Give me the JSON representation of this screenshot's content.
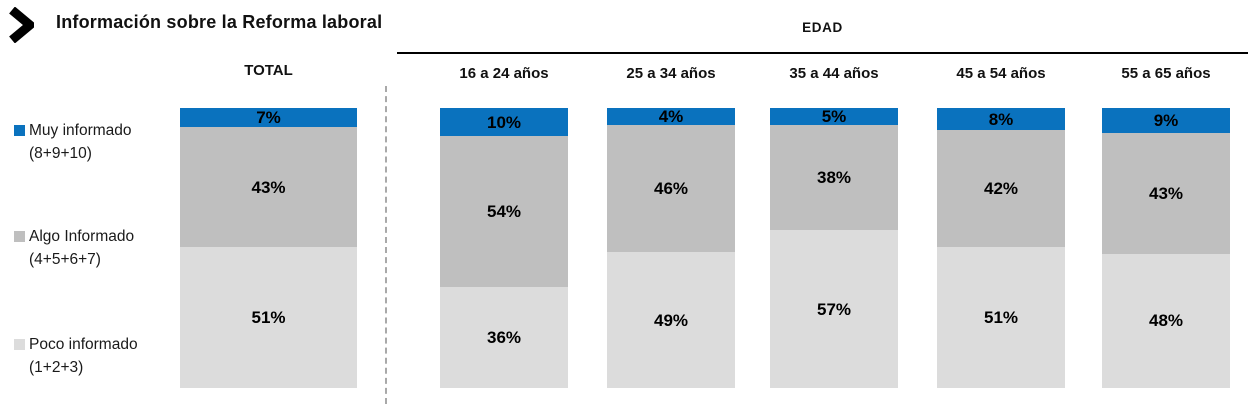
{
  "header": {
    "title": "Información sobre la Reforma laboral",
    "group_label": "EDAD"
  },
  "legend": [
    {
      "label": "Muy informado",
      "sublabel": "(8+9+10)",
      "color": "#0a72be"
    },
    {
      "label": "Algo Informado",
      "sublabel": "(4+5+6+7)",
      "color": "#bfbfbf"
    },
    {
      "label": "Poco informado",
      "sublabel": "(1+2+3)",
      "color": "#dcdcdc"
    }
  ],
  "chart_data": {
    "type": "bar",
    "stacked": true,
    "orientation": "vertical",
    "title": "Información sobre la Reforma laboral",
    "group_header": "EDAD",
    "value_suffix": "%",
    "axis_max": 100,
    "categories": [
      "TOTAL",
      "16 a 24 años",
      "25 a 34 años",
      "35 a 44 años",
      "45 a 54 años",
      "55 a 65 años"
    ],
    "series": [
      {
        "name": "Muy informado (8+9+10)",
        "color": "#0a72be",
        "values": [
          7,
          10,
          4,
          5,
          8,
          9
        ]
      },
      {
        "name": "Algo Informado (4+5+6+7)",
        "color": "#bfbfbf",
        "values": [
          43,
          54,
          46,
          38,
          42,
          43
        ]
      },
      {
        "name": "Poco informado (1+2+3)",
        "color": "#dcdcdc",
        "values": [
          51,
          36,
          49,
          57,
          51,
          48
        ]
      }
    ]
  }
}
